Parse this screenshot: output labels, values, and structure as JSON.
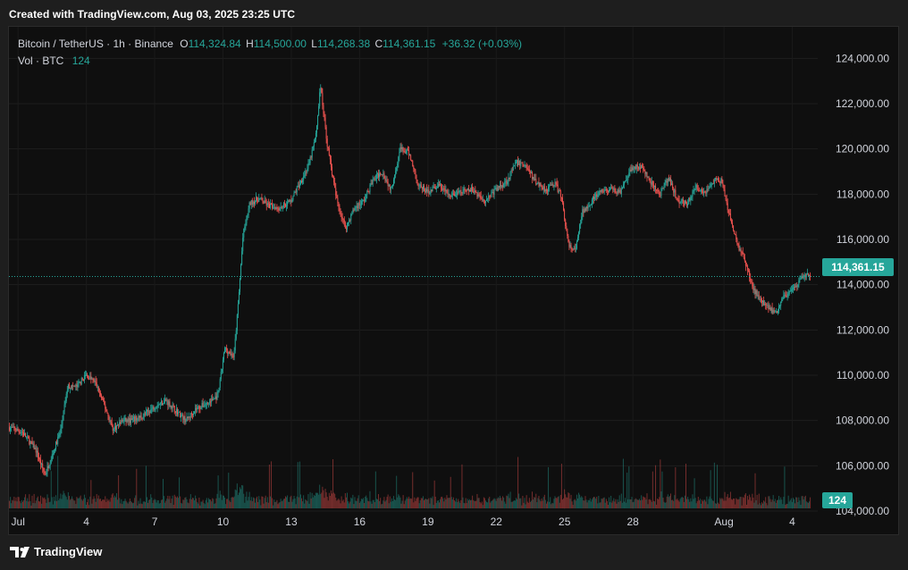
{
  "header": {
    "caption": "Created with TradingView.com, Aug 03, 2025 23:25 UTC"
  },
  "legend": {
    "symbol": "Bitcoin / TetherUS · 1h · Binance",
    "open_label": "O",
    "open": "114,324.84",
    "high_label": "H",
    "high": "114,500.00",
    "low_label": "L",
    "low": "114,268.38",
    "close_label": "C",
    "close": "114,361.15",
    "change": "+36.32 (+0.03%)",
    "vol_label": "Vol · BTC",
    "vol_value": "124"
  },
  "price_tag": "114,361.15",
  "volume_tag": "124",
  "footer": {
    "brand": "TradingView"
  },
  "colors": {
    "up": "#26a69a",
    "down": "#ef5350",
    "background": "#0f0f0f",
    "grid": "#1f1f1f"
  },
  "chart_data": {
    "type": "candlestick",
    "title": "Bitcoin / TetherUS · 1h · Binance",
    "ylim": [
      104000,
      125000
    ],
    "y_ticks": [
      "104,000.00",
      "106,000.00",
      "108,000.00",
      "110,000.00",
      "112,000.00",
      "114,000.00",
      "116,000.00",
      "118,000.00",
      "120,000.00",
      "122,000.00",
      "124,000.00"
    ],
    "y_tick_values": [
      104000,
      106000,
      108000,
      110000,
      112000,
      114000,
      116000,
      118000,
      120000,
      122000,
      124000
    ],
    "x_ticks": [
      "Jul",
      "4",
      "7",
      "10",
      "13",
      "16",
      "19",
      "22",
      "25",
      "28",
      "Aug",
      "4"
    ],
    "x_tick_days": [
      1,
      4,
      7,
      10,
      13,
      16,
      19,
      22,
      25,
      28,
      32,
      35
    ],
    "x_range_days": [
      0.6,
      36.0
    ],
    "last_price": 114361.15,
    "price_trajectory": [
      [
        0.6,
        107700
      ],
      [
        1.2,
        107500
      ],
      [
        1.8,
        106700
      ],
      [
        2.2,
        105600
      ],
      [
        2.6,
        106700
      ],
      [
        2.9,
        107600
      ],
      [
        3.2,
        109500
      ],
      [
        3.6,
        109500
      ],
      [
        4.0,
        110000
      ],
      [
        4.4,
        109700
      ],
      [
        4.8,
        108700
      ],
      [
        5.2,
        107600
      ],
      [
        5.6,
        108000
      ],
      [
        6.0,
        108000
      ],
      [
        6.5,
        108200
      ],
      [
        7.0,
        108600
      ],
      [
        7.5,
        108900
      ],
      [
        7.9,
        108500
      ],
      [
        8.4,
        108000
      ],
      [
        8.8,
        108500
      ],
      [
        9.4,
        108800
      ],
      [
        9.8,
        109100
      ],
      [
        10.1,
        111200
      ],
      [
        10.5,
        110800
      ],
      [
        10.7,
        113300
      ],
      [
        10.9,
        116200
      ],
      [
        11.2,
        117600
      ],
      [
        11.6,
        117800
      ],
      [
        12.0,
        117500
      ],
      [
        12.5,
        117400
      ],
      [
        13.0,
        117700
      ],
      [
        13.4,
        118500
      ],
      [
        13.8,
        119300
      ],
      [
        14.1,
        120600
      ],
      [
        14.3,
        122800
      ],
      [
        14.6,
        120200
      ],
      [
        15.0,
        117800
      ],
      [
        15.4,
        116500
      ],
      [
        15.8,
        117400
      ],
      [
        16.2,
        117700
      ],
      [
        16.6,
        118600
      ],
      [
        17.0,
        119000
      ],
      [
        17.4,
        118200
      ],
      [
        17.8,
        120000
      ],
      [
        18.2,
        119800
      ],
      [
        18.6,
        118400
      ],
      [
        19.0,
        118100
      ],
      [
        19.5,
        118400
      ],
      [
        20.0,
        117900
      ],
      [
        20.5,
        118100
      ],
      [
        21.0,
        118200
      ],
      [
        21.5,
        117700
      ],
      [
        22.0,
        118200
      ],
      [
        22.5,
        118600
      ],
      [
        22.9,
        119400
      ],
      [
        23.3,
        119300
      ],
      [
        23.7,
        118600
      ],
      [
        24.2,
        118200
      ],
      [
        24.6,
        118500
      ],
      [
        24.9,
        117800
      ],
      [
        25.2,
        115700
      ],
      [
        25.5,
        115500
      ],
      [
        25.8,
        117200
      ],
      [
        26.2,
        117700
      ],
      [
        26.6,
        118100
      ],
      [
        27.0,
        118200
      ],
      [
        27.5,
        118100
      ],
      [
        28.0,
        119200
      ],
      [
        28.4,
        119200
      ],
      [
        28.8,
        118500
      ],
      [
        29.2,
        118000
      ],
      [
        29.6,
        118700
      ],
      [
        30.0,
        117700
      ],
      [
        30.4,
        117600
      ],
      [
        30.8,
        118300
      ],
      [
        31.2,
        118100
      ],
      [
        31.6,
        118600
      ],
      [
        31.9,
        118600
      ],
      [
        32.2,
        117300
      ],
      [
        32.6,
        115800
      ],
      [
        32.9,
        115200
      ],
      [
        33.3,
        113800
      ],
      [
        33.7,
        113300
      ],
      [
        34.0,
        113000
      ],
      [
        34.3,
        112700
      ],
      [
        34.6,
        113500
      ],
      [
        34.9,
        113600
      ],
      [
        35.2,
        113900
      ],
      [
        35.5,
        114400
      ],
      [
        35.8,
        114360
      ]
    ]
  }
}
